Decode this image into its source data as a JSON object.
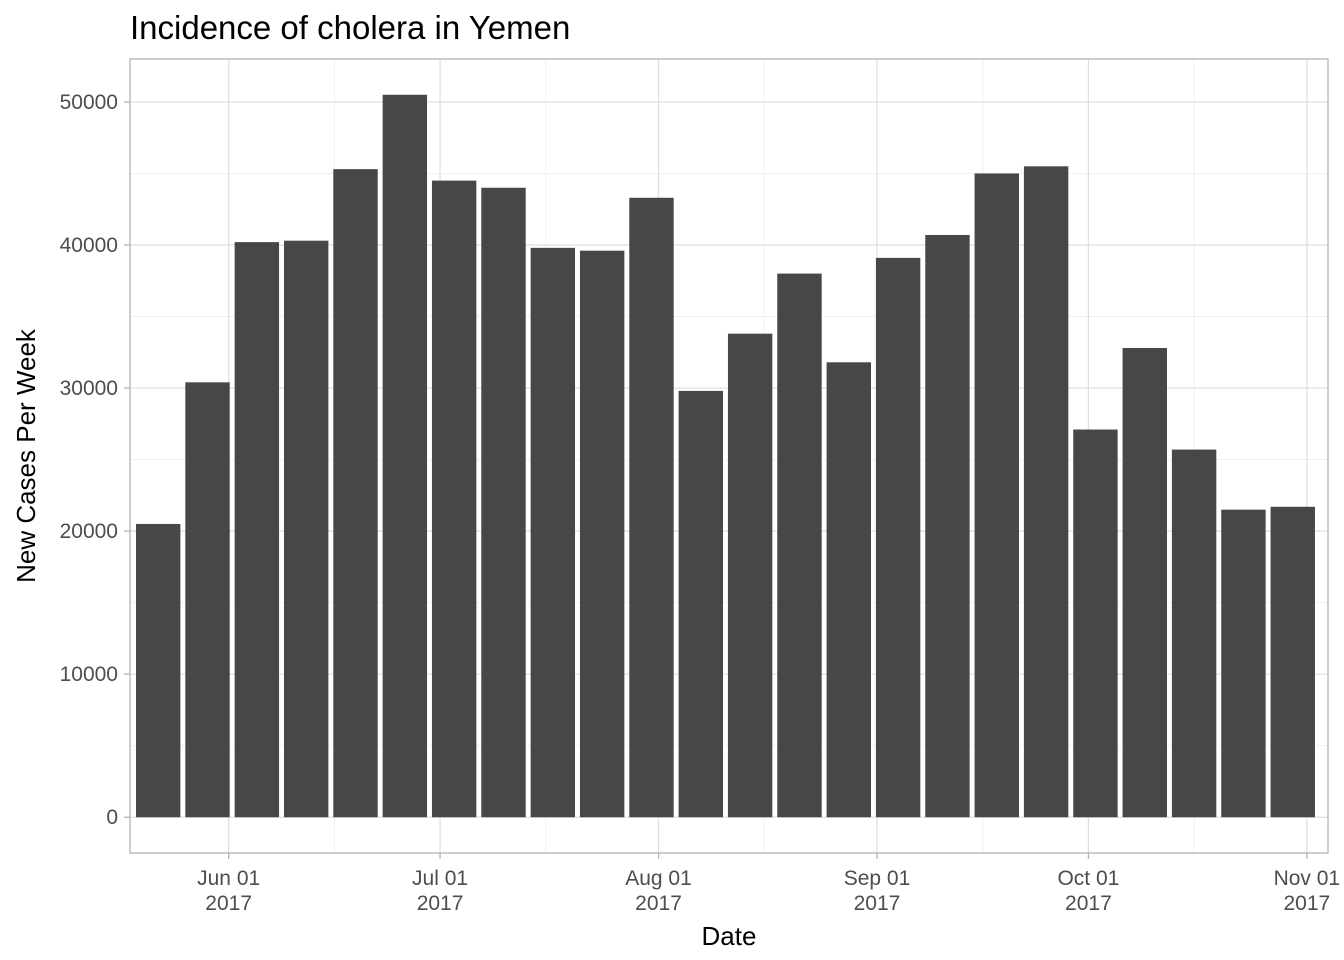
{
  "chart_data": {
    "type": "bar",
    "title": "Incidence of cholera in Yemen",
    "xlabel": "Date",
    "ylabel": "New Cases Per Week",
    "x_axis_type": "date",
    "x": [
      "2017-05-22",
      "2017-05-29",
      "2017-06-05",
      "2017-06-12",
      "2017-06-19",
      "2017-06-26",
      "2017-07-03",
      "2017-07-10",
      "2017-07-17",
      "2017-07-24",
      "2017-07-31",
      "2017-08-07",
      "2017-08-14",
      "2017-08-21",
      "2017-08-28",
      "2017-09-04",
      "2017-09-11",
      "2017-09-18",
      "2017-09-25",
      "2017-10-02",
      "2017-10-09",
      "2017-10-16",
      "2017-10-23",
      "2017-10-30"
    ],
    "values": [
      20500,
      30400,
      40200,
      40300,
      45300,
      50500,
      44500,
      44000,
      39800,
      39600,
      43300,
      29800,
      33800,
      38000,
      31800,
      39100,
      40700,
      45000,
      45500,
      27100,
      32800,
      25700,
      21500,
      21700
    ],
    "bar_color": "#474747",
    "xlim": [
      "2017-05-18",
      "2017-11-04"
    ],
    "ylim": [
      -2500,
      53000
    ],
    "y_ticks": [
      0,
      10000,
      20000,
      30000,
      40000,
      50000
    ],
    "y_tick_labels": [
      "0",
      "10000",
      "20000",
      "30000",
      "40000",
      "50000"
    ],
    "y_minor_ticks": [
      5000,
      15000,
      25000,
      35000,
      45000
    ],
    "x_ticks": [
      "2017-06-01",
      "2017-07-01",
      "2017-08-01",
      "2017-09-01",
      "2017-10-01",
      "2017-11-01"
    ],
    "x_tick_labels": [
      [
        "Jun 01",
        "2017"
      ],
      [
        "Jul 01",
        "2017"
      ],
      [
        "Aug 01",
        "2017"
      ],
      [
        "Sep 01",
        "2017"
      ],
      [
        "Oct 01",
        "2017"
      ],
      [
        "Nov 01",
        "2017"
      ]
    ],
    "x_minor_ticks": [
      "2017-05-16",
      "2017-06-16",
      "2017-07-16",
      "2017-08-16",
      "2017-09-16",
      "2017-10-16"
    ],
    "grid": true,
    "legend": "none",
    "theme": "light"
  }
}
